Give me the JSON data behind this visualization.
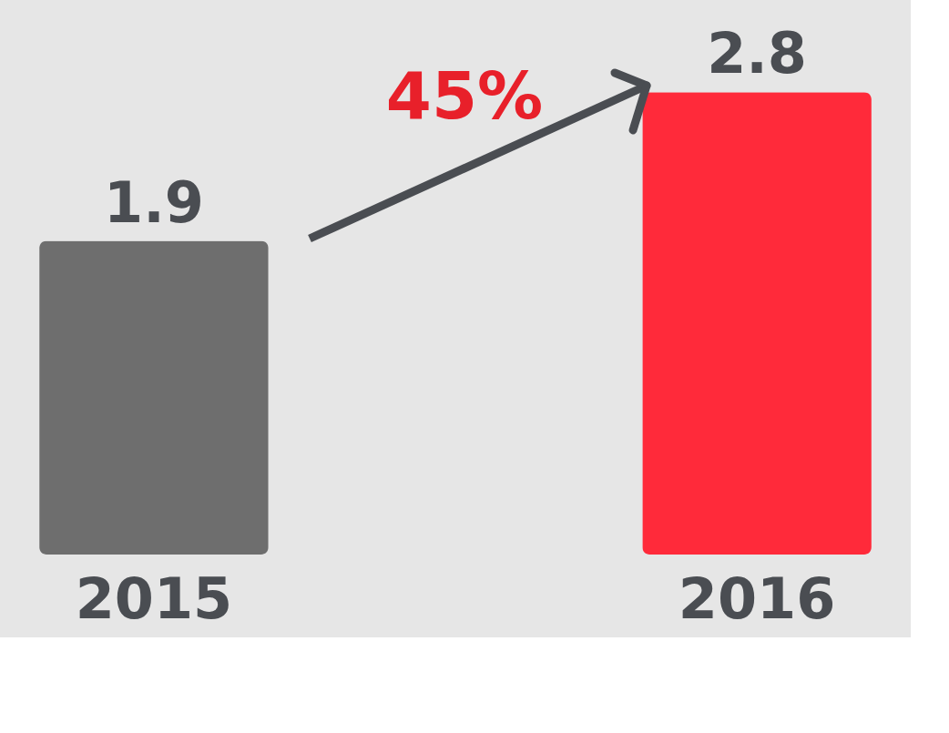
{
  "chart_data": {
    "type": "bar",
    "categories": [
      "2015",
      "2016"
    ],
    "values": [
      1.9,
      2.8
    ],
    "colors": [
      "#6e6e6e",
      "#ff2a3a"
    ],
    "data_labels": true,
    "annotations": [
      "45%"
    ]
  }
}
